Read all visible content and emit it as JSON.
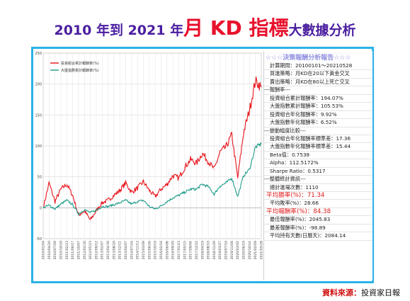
{
  "title": {
    "part1": "2010 年到 2021 年",
    "part2": "月 KD 指標",
    "part3": "大數據分析"
  },
  "source": {
    "label": "資料來源：",
    "value": "投資家日報"
  },
  "stats": {
    "title": "☆☆☆決策報酬分析報告☆☆☆",
    "rows": [
      {
        "text": "計算期間：20100101～20210528",
        "kind": "ind"
      },
      {
        "text": "買進策略：月KD在20以下黃金交叉",
        "kind": "ind"
      },
      {
        "text": "賣出策略：月KD在80以上死亡交叉",
        "kind": "ind"
      },
      {
        "text": "---報酬率---",
        "kind": "sec"
      },
      {
        "text": "投資組合累計報酬率：194.07%",
        "kind": "ind"
      },
      {
        "text": "大盤指數累計報酬率：105.53%",
        "kind": "ind"
      },
      {
        "text": "投資組合年化報酬率：9.92%",
        "kind": "ind"
      },
      {
        "text": "大盤指數年化報酬率：6.52%",
        "kind": "ind"
      },
      {
        "text": "---變動幅度比較---",
        "kind": "sec"
      },
      {
        "text": "投資組合年化報酬率標準差：17.36",
        "kind": "ind"
      },
      {
        "text": "大盤指數年化報酬率標準差：15.44",
        "kind": "ind"
      },
      {
        "text": "Beta值：0.7538",
        "kind": "ind"
      },
      {
        "text": "Alpha：112.5172%",
        "kind": "ind"
      },
      {
        "text": "Sharpe Ratio：0.5317",
        "kind": "ind"
      },
      {
        "text": "---整體統計資訊---",
        "kind": "sec"
      },
      {
        "text": "總計進場次數：1110",
        "kind": "ind"
      },
      {
        "text": "平均勝率(%)：71.34",
        "kind": "hi"
      },
      {
        "text": "平均敗率(%)：28.66",
        "kind": "ind"
      },
      {
        "text": "平均報酬率(%)：84.38",
        "kind": "hi"
      },
      {
        "text": "最佳報酬率(%)：2045.83",
        "kind": "ind"
      },
      {
        "text": "最差報酬率(%)：-98.89",
        "kind": "ind"
      },
      {
        "text": "平均持有天數(日曆天)：2084.14",
        "kind": "ind"
      }
    ]
  },
  "chart_data": {
    "type": "line",
    "title": "",
    "xlabel": "",
    "ylabel": "",
    "ylim": [
      -50,
      250
    ],
    "yticks": [
      -50,
      0,
      50,
      100,
      150,
      200,
      250
    ],
    "grid": true,
    "legend_position": "top-left",
    "x": [
      "2010/01/04",
      "2010/04/20",
      "2010/07/09",
      "2010/10/29",
      "2011/02/23",
      "2011/06/17",
      "2011/10/07",
      "2012/01/30",
      "2012/05/23",
      "2012/09/12",
      "2013/01/07",
      "2013/04/30",
      "2013/08/20",
      "2013/12/11",
      "2014/04/07",
      "2014/07/24",
      "2014/11/12",
      "2015/03/09",
      "2015/06/26",
      "2015/10/19",
      "2016/02/16",
      "2016/06/08",
      "2016/09/29",
      "2017/01/23",
      "2017/05/15",
      "2017/09/04",
      "2017/12/22",
      "2018/04/19",
      "2018/08/10",
      "2018/11/29",
      "2019/03/27",
      "2019/07/16",
      "2019/11/06",
      "2020/03/02",
      "2020/06/19",
      "2020/10/14",
      "2021/02/09",
      "2021/05/28"
    ],
    "series": [
      {
        "name": "投資組合累計報酬率(%)",
        "color": "#e8141a",
        "values": [
          0,
          40,
          10,
          30,
          38,
          20,
          -12,
          -5,
          -20,
          -5,
          8,
          12,
          20,
          28,
          40,
          25,
          32,
          42,
          28,
          18,
          30,
          38,
          52,
          48,
          65,
          78,
          72,
          88,
          75,
          62,
          90,
          98,
          118,
          48,
          122,
          158,
          205,
          195
        ]
      },
      {
        "name": "大盤指數累計報酬率(%)",
        "color": "#1e9c8a",
        "values": [
          0,
          4,
          -2,
          6,
          12,
          5,
          -10,
          -3,
          -8,
          -4,
          2,
          2,
          5,
          8,
          12,
          6,
          10,
          12,
          2,
          -2,
          3,
          10,
          16,
          20,
          25,
          30,
          30,
          38,
          34,
          22,
          35,
          40,
          48,
          18,
          52,
          62,
          98,
          103
        ]
      }
    ]
  }
}
